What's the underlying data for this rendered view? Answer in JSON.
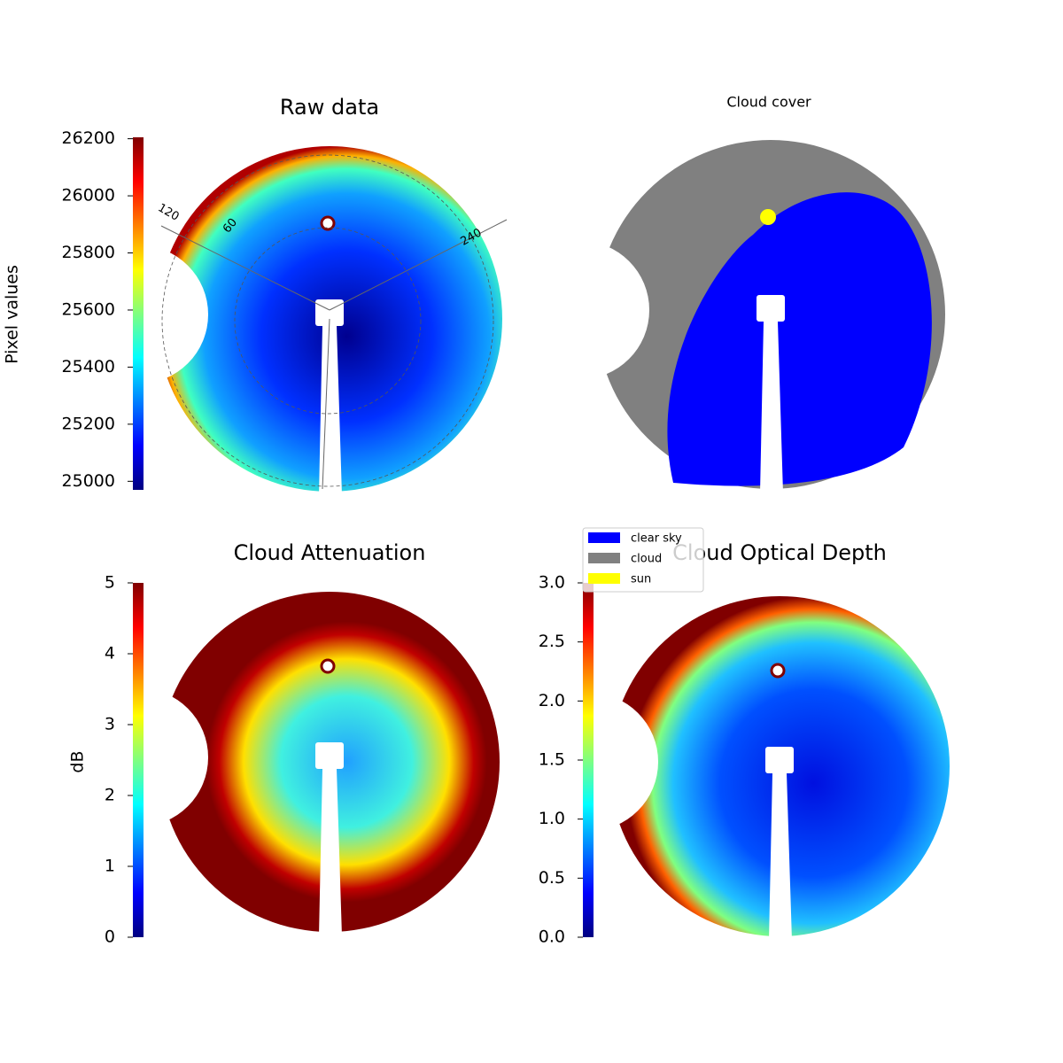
{
  "chart_data": [
    {
      "type": "image",
      "title": "Raw data",
      "colormap": "jet",
      "ylabel": "Pixel values",
      "ylim": [
        24970,
        26205
      ],
      "yticks": [
        25000,
        25200,
        25400,
        25600,
        25800,
        26000,
        26200
      ],
      "annotations": [
        "120",
        "60",
        "240"
      ]
    },
    {
      "type": "image",
      "title": "Cloud cover",
      "legend": [
        {
          "name": "clear sky",
          "color": "#0000ff"
        },
        {
          "name": "cloud",
          "color": "#808080"
        },
        {
          "name": "sun",
          "color": "#ffff00"
        }
      ]
    },
    {
      "type": "image",
      "title": "Cloud Attenuation",
      "colormap": "jet",
      "ylabel": "dB",
      "ylim": [
        0,
        5
      ],
      "yticks": [
        0,
        1,
        2,
        3,
        4,
        5
      ]
    },
    {
      "type": "image",
      "title": "Cloud Optical Depth",
      "colormap": "jet",
      "ylim": [
        0,
        3
      ],
      "yticks": [
        {
          "value": 0,
          "label": "0.0"
        },
        0.5,
        {
          "value": 1,
          "label": "1.0"
        },
        1.5,
        {
          "value": 2,
          "label": "2.0"
        },
        2.5,
        {
          "value": 3,
          "label": "3.0"
        }
      ]
    }
  ]
}
